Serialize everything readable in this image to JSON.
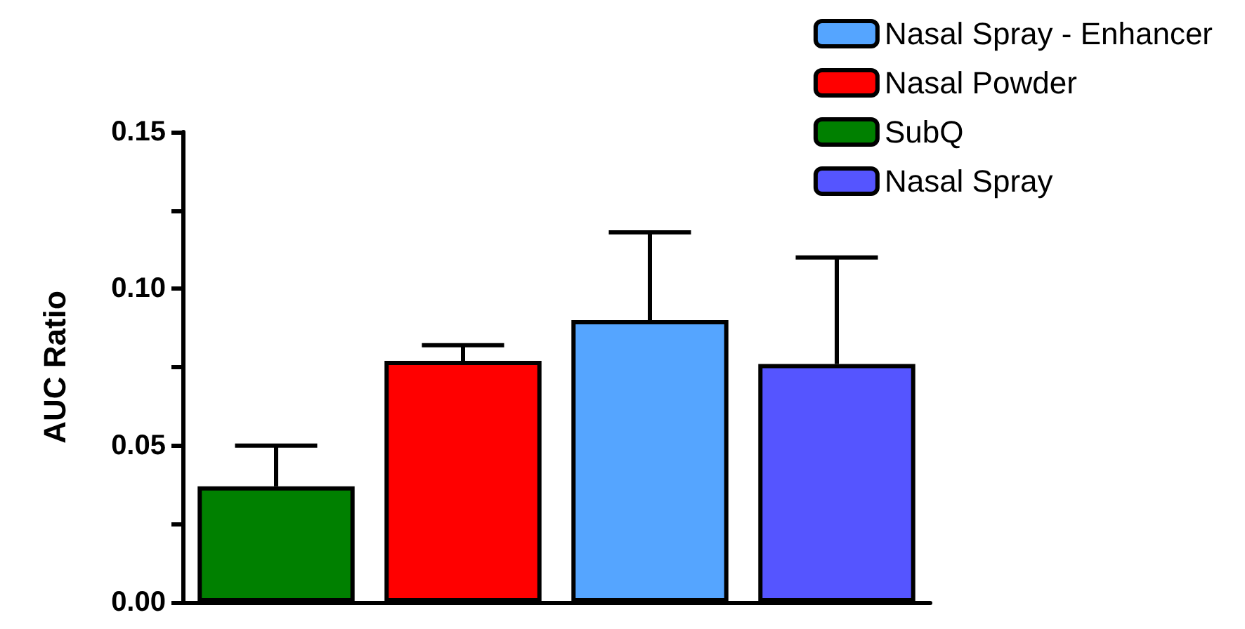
{
  "chart_data": {
    "type": "bar",
    "ylabel": "AUC Ratio",
    "categories": [
      null,
      null,
      null,
      null
    ],
    "series": [
      {
        "name": "Nasal Spray - Enhancer",
        "color": "#55a5ff",
        "values": [
          null,
          null,
          0.09,
          null
        ],
        "errors": [
          null,
          null,
          [
            0.09,
            0.118
          ],
          null
        ]
      },
      {
        "name": "Nasal Powder",
        "color": "#ff0000",
        "values": [
          null,
          0.077,
          null,
          null
        ],
        "errors": [
          null,
          [
            0.077,
            0.082
          ],
          null,
          null
        ]
      },
      {
        "name": "SubQ",
        "color": "#008000",
        "values": [
          0.037,
          null,
          null,
          null
        ],
        "errors": [
          [
            0.037,
            0.05
          ],
          null,
          null,
          null
        ]
      },
      {
        "name": "Nasal Spray",
        "color": "#5555ff",
        "values": [
          null,
          null,
          null,
          0.076
        ],
        "errors": [
          null,
          null,
          null,
          [
            0.076,
            0.11
          ]
        ]
      }
    ],
    "ylim": [
      0,
      0.15
    ],
    "yticks": [
      {
        "value": 0,
        "label": "0.00"
      },
      {
        "value": 0.025,
        "label": null
      },
      {
        "value": 0.05,
        "label": "0.05"
      },
      {
        "value": 0.075,
        "label": null
      },
      {
        "value": 0.1,
        "label": "0.10"
      },
      {
        "value": 0.125,
        "label": null
      },
      {
        "value": 0.15,
        "label": "0.15"
      }
    ],
    "grid": false,
    "legend": "top right"
  }
}
